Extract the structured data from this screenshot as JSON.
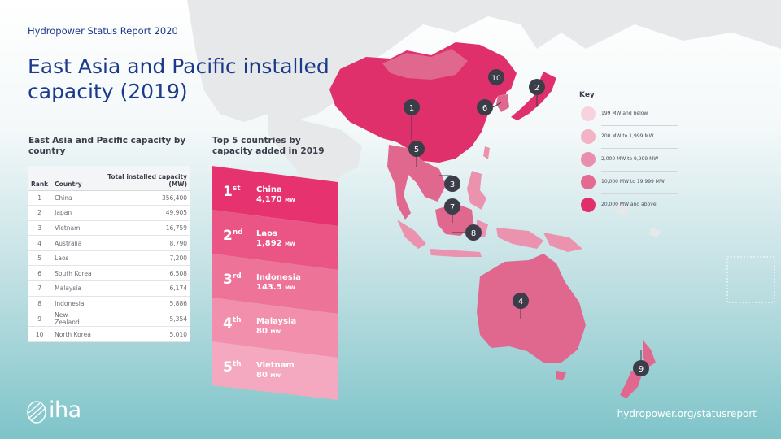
{
  "header": {
    "report_label": "Hydropower Status Report 2020",
    "title": "East Asia and Pacific installed capacity (2019)"
  },
  "capacity_table": {
    "heading": "East Asia and Pacific capacity by country",
    "columns": [
      "Rank",
      "Country",
      "Total installed capacity (MW)"
    ],
    "rows": [
      {
        "rank": "1",
        "country": "China",
        "capacity": "356,400"
      },
      {
        "rank": "2",
        "country": "Japan",
        "capacity": "49,905"
      },
      {
        "rank": "3",
        "country": "Vietnam",
        "capacity": "16,759"
      },
      {
        "rank": "4",
        "country": "Australia",
        "capacity": "8,790"
      },
      {
        "rank": "5",
        "country": "Laos",
        "capacity": "7,200"
      },
      {
        "rank": "6",
        "country": "South Korea",
        "capacity": "6,508"
      },
      {
        "rank": "7",
        "country": "Malaysia",
        "capacity": "6,174"
      },
      {
        "rank": "8",
        "country": "Indonesia",
        "capacity": "5,886"
      },
      {
        "rank": "9",
        "country": "New Zealand",
        "capacity": "5,354"
      },
      {
        "rank": "10",
        "country": "North Korea",
        "capacity": "5,010"
      }
    ]
  },
  "top5": {
    "heading": "Top 5 countries by capacity added in 2019",
    "items": [
      {
        "ordinal": "1",
        "suffix": "st",
        "country": "China",
        "value": "4,170",
        "unit": "MW",
        "color": "#e6336f"
      },
      {
        "ordinal": "2",
        "suffix": "nd",
        "country": "Laos",
        "value": "1,892",
        "unit": "MW",
        "color": "#ea5585"
      },
      {
        "ordinal": "3",
        "suffix": "rd",
        "country": "Indonesia",
        "value": "143.5",
        "unit": "MW",
        "color": "#ee7399"
      },
      {
        "ordinal": "4",
        "suffix": "th",
        "country": "Malaysia",
        "value": "80",
        "unit": "MW",
        "color": "#f18fad"
      },
      {
        "ordinal": "5",
        "suffix": "th",
        "country": "Vietnam",
        "value": "80",
        "unit": "MW",
        "color": "#f4a9c0"
      }
    ]
  },
  "key": {
    "title": "Key",
    "items": [
      {
        "label": "199 MW and below",
        "color": "#f7d3de"
      },
      {
        "label": "200 MW to 1,999 MW",
        "color": "#f2b3c6"
      },
      {
        "label": "2,000 MW to 9,999 MW",
        "color": "#ea8ead"
      },
      {
        "label": "10,000 MW to 19,999 MW",
        "color": "#e46a92"
      },
      {
        "label": "20,000 MW and above",
        "color": "#e0306b"
      }
    ]
  },
  "map_markers": [
    {
      "rank": "1",
      "country": "China"
    },
    {
      "rank": "2",
      "country": "Japan"
    },
    {
      "rank": "3",
      "country": "Vietnam"
    },
    {
      "rank": "4",
      "country": "Australia"
    },
    {
      "rank": "5",
      "country": "Laos"
    },
    {
      "rank": "6",
      "country": "South Korea"
    },
    {
      "rank": "7",
      "country": "Malaysia"
    },
    {
      "rank": "8",
      "country": "Indonesia"
    },
    {
      "rank": "9",
      "country": "New Zealand"
    },
    {
      "rank": "10",
      "country": "North Korea"
    }
  ],
  "footer": {
    "logo_text": "iha",
    "url": "hydropower.org/statusreport"
  }
}
